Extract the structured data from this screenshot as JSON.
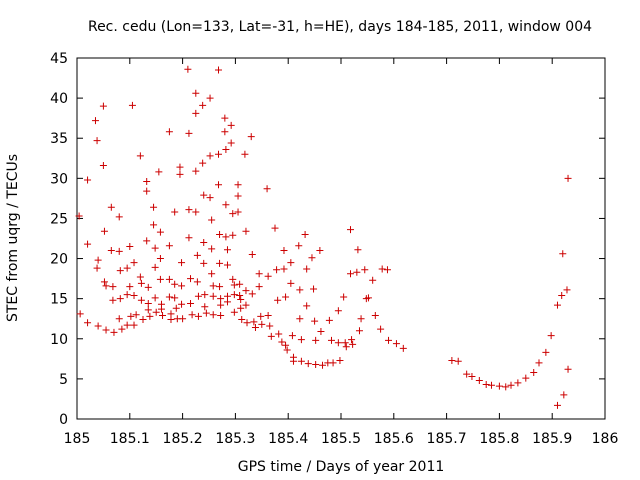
{
  "chart_data": {
    "type": "scatter",
    "title": "Rec. cedu (Lon=133, Lat=-31, h=HE), days 184-185, 2011, window 004",
    "xlabel": "GPS time / Days of year 2011",
    "ylabel": "STEC from uqrg / TECUs",
    "xlim": [
      185,
      186
    ],
    "ylim": [
      0,
      45
    ],
    "x_ticks": [
      185,
      185.1,
      185.2,
      185.3,
      185.4,
      185.5,
      185.6,
      185.7,
      185.8,
      185.9,
      186
    ],
    "x_tick_labels": [
      "185",
      "185.1",
      "185.2",
      "185.3",
      "185.4",
      "185.5",
      "185.6",
      "185.7",
      "185.8",
      "185.9",
      "186"
    ],
    "y_ticks": [
      0,
      5,
      10,
      15,
      20,
      25,
      30,
      35,
      40,
      45
    ],
    "y_tick_labels": [
      "0",
      "5",
      "10",
      "15",
      "20",
      "25",
      "30",
      "35",
      "40",
      "45"
    ],
    "grid": false,
    "marker": "+",
    "color": "#cc0000",
    "points": [
      [
        185.004,
        25.3
      ],
      [
        185.006,
        13.1
      ],
      [
        185.02,
        29.8
      ],
      [
        185.02,
        21.8
      ],
      [
        185.02,
        12
      ],
      [
        185.035,
        37.2
      ],
      [
        185.038,
        34.7
      ],
      [
        185.04,
        19.8
      ],
      [
        185.038,
        18.8
      ],
      [
        185.04,
        11.6
      ],
      [
        185.05,
        39
      ],
      [
        185.05,
        31.6
      ],
      [
        185.052,
        23.4
      ],
      [
        185.052,
        17.1
      ],
      [
        185.055,
        16.6
      ],
      [
        185.055,
        11.1
      ],
      [
        185.065,
        26.4
      ],
      [
        185.065,
        21
      ],
      [
        185.068,
        16.5
      ],
      [
        185.068,
        14.8
      ],
      [
        185.07,
        10.8
      ],
      [
        185.08,
        25.2
      ],
      [
        185.08,
        20.9
      ],
      [
        185.082,
        18.5
      ],
      [
        185.082,
        15
      ],
      [
        185.08,
        12.5
      ],
      [
        185.085,
        11.2
      ],
      [
        185.095,
        18.8
      ],
      [
        185.095,
        15.5
      ],
      [
        185.095,
        11.7
      ],
      [
        185.1,
        21.5
      ],
      [
        185.1,
        16.5
      ],
      [
        185.102,
        12.8
      ],
      [
        185.105,
        39.1
      ],
      [
        185.108,
        19.5
      ],
      [
        185.108,
        15.4
      ],
      [
        185.108,
        11.7
      ],
      [
        185.112,
        13
      ],
      [
        185.12,
        32.8
      ],
      [
        185.12,
        17.7
      ],
      [
        185.122,
        16.9
      ],
      [
        185.122,
        14.8
      ],
      [
        185.125,
        12.4
      ],
      [
        185.132,
        29.6
      ],
      [
        185.132,
        28.4
      ],
      [
        185.132,
        22.2
      ],
      [
        185.135,
        16.4
      ],
      [
        185.135,
        14.4
      ],
      [
        185.135,
        13.6
      ],
      [
        185.138,
        12.8
      ],
      [
        185.145,
        26.4
      ],
      [
        185.145,
        24.2
      ],
      [
        185.148,
        21.3
      ],
      [
        185.148,
        18.9
      ],
      [
        185.148,
        15.1
      ],
      [
        185.15,
        13.3
      ],
      [
        185.155,
        30.8
      ],
      [
        185.158,
        23.3
      ],
      [
        185.158,
        20
      ],
      [
        185.158,
        17.4
      ],
      [
        185.16,
        14.3
      ],
      [
        185.16,
        13.7
      ],
      [
        185.162,
        12.9
      ],
      [
        185.175,
        35.8
      ],
      [
        185.175,
        21.6
      ],
      [
        185.175,
        17.4
      ],
      [
        185.175,
        15.2
      ],
      [
        185.178,
        13.1
      ],
      [
        185.178,
        12.4
      ],
      [
        185.185,
        25.8
      ],
      [
        185.185,
        16.8
      ],
      [
        185.185,
        15.1
      ],
      [
        185.188,
        13.8
      ],
      [
        185.19,
        12.5
      ],
      [
        185.195,
        31.4
      ],
      [
        185.195,
        30.5
      ],
      [
        185.198,
        19.5
      ],
      [
        185.198,
        16.6
      ],
      [
        185.198,
        14.3
      ],
      [
        185.2,
        12.5
      ],
      [
        185.21,
        43.6
      ],
      [
        185.212,
        35.6
      ],
      [
        185.212,
        26.1
      ],
      [
        185.212,
        22.6
      ],
      [
        185.215,
        17.5
      ],
      [
        185.215,
        14.4
      ],
      [
        185.218,
        13
      ],
      [
        185.225,
        40.6
      ],
      [
        185.225,
        38.1
      ],
      [
        185.225,
        30.9
      ],
      [
        185.225,
        25.8
      ],
      [
        185.228,
        20.4
      ],
      [
        185.228,
        17.1
      ],
      [
        185.23,
        15.3
      ],
      [
        185.23,
        12.8
      ],
      [
        185.238,
        39.1
      ],
      [
        185.238,
        31.9
      ],
      [
        185.24,
        27.9
      ],
      [
        185.24,
        22
      ],
      [
        185.24,
        19.4
      ],
      [
        185.242,
        15.5
      ],
      [
        185.242,
        14
      ],
      [
        185.245,
        13.2
      ],
      [
        185.252,
        40
      ],
      [
        185.252,
        32.8
      ],
      [
        185.252,
        27.6
      ],
      [
        185.255,
        24.8
      ],
      [
        185.255,
        21.2
      ],
      [
        185.255,
        18.1
      ],
      [
        185.258,
        16.6
      ],
      [
        185.258,
        15.3
      ],
      [
        185.258,
        13
      ],
      [
        185.268,
        43.5
      ],
      [
        185.268,
        33
      ],
      [
        185.268,
        29.2
      ],
      [
        185.27,
        23
      ],
      [
        185.27,
        19.4
      ],
      [
        185.27,
        16.5
      ],
      [
        185.272,
        15
      ],
      [
        185.272,
        14.2
      ],
      [
        185.272,
        12.9
      ],
      [
        185.28,
        37.5
      ],
      [
        185.28,
        35.8
      ],
      [
        185.282,
        33.6
      ],
      [
        185.282,
        26.7
      ],
      [
        185.282,
        22.7
      ],
      [
        185.285,
        21.1
      ],
      [
        185.285,
        19.2
      ],
      [
        185.285,
        15.3
      ],
      [
        185.285,
        14.6
      ],
      [
        185.292,
        36.6
      ],
      [
        185.292,
        34.4
      ],
      [
        185.295,
        25.6
      ],
      [
        185.295,
        22.9
      ],
      [
        185.295,
        17.4
      ],
      [
        185.298,
        16.7
      ],
      [
        185.298,
        15.5
      ],
      [
        185.298,
        13.3
      ],
      [
        185.305,
        29.2
      ],
      [
        185.305,
        27.8
      ],
      [
        185.305,
        25.8
      ],
      [
        185.308,
        16.8
      ],
      [
        185.308,
        15.4
      ],
      [
        185.31,
        14.9
      ],
      [
        185.31,
        13.8
      ],
      [
        185.312,
        12.4
      ],
      [
        185.318,
        33
      ],
      [
        185.32,
        23.4
      ],
      [
        185.32,
        16
      ],
      [
        185.32,
        14.2
      ],
      [
        185.322,
        12
      ],
      [
        185.33,
        35.2
      ],
      [
        185.332,
        20.5
      ],
      [
        185.332,
        15.6
      ],
      [
        185.335,
        12.1
      ],
      [
        185.338,
        11.4
      ],
      [
        185.345,
        18.1
      ],
      [
        185.345,
        16.5
      ],
      [
        185.348,
        12.8
      ],
      [
        185.35,
        11.8
      ],
      [
        185.36,
        28.7
      ],
      [
        185.362,
        17.8
      ],
      [
        185.362,
        12.9
      ],
      [
        185.365,
        11.6
      ],
      [
        185.368,
        10.3
      ],
      [
        185.375,
        23.8
      ],
      [
        185.378,
        18.6
      ],
      [
        185.38,
        14.8
      ],
      [
        185.382,
        10.6
      ],
      [
        185.388,
        9.6
      ],
      [
        185.392,
        21
      ],
      [
        185.392,
        18.7
      ],
      [
        185.395,
        15.2
      ],
      [
        185.395,
        9.2
      ],
      [
        185.398,
        8.6
      ],
      [
        185.405,
        19.5
      ],
      [
        185.405,
        16.9
      ],
      [
        185.408,
        10.4
      ],
      [
        185.41,
        7.7
      ],
      [
        185.41,
        7.2
      ],
      [
        185.42,
        21.6
      ],
      [
        185.422,
        16.1
      ],
      [
        185.422,
        12.5
      ],
      [
        185.425,
        9.9
      ],
      [
        185.425,
        7.2
      ],
      [
        185.432,
        23
      ],
      [
        185.435,
        18.7
      ],
      [
        185.435,
        14.1
      ],
      [
        185.438,
        6.9
      ],
      [
        185.445,
        20.1
      ],
      [
        185.448,
        16.2
      ],
      [
        185.45,
        12.2
      ],
      [
        185.452,
        9.8
      ],
      [
        185.452,
        6.8
      ],
      [
        185.46,
        21
      ],
      [
        185.462,
        10.9
      ],
      [
        185.465,
        6.7
      ],
      [
        185.475,
        7
      ],
      [
        185.478,
        12.3
      ],
      [
        185.482,
        9.8
      ],
      [
        185.485,
        7
      ],
      [
        185.495,
        13.5
      ],
      [
        185.495,
        9.5
      ],
      [
        185.498,
        7.3
      ],
      [
        185.505,
        15.2
      ],
      [
        185.508,
        9.5
      ],
      [
        185.51,
        9
      ],
      [
        185.518,
        23.6
      ],
      [
        185.518,
        18.1
      ],
      [
        185.52,
        9.9
      ],
      [
        185.522,
        9.3
      ],
      [
        185.53,
        18.3
      ],
      [
        185.532,
        21.1
      ],
      [
        185.535,
        11
      ],
      [
        185.538,
        12.5
      ],
      [
        185.545,
        18.6
      ],
      [
        185.548,
        15
      ],
      [
        185.552,
        15.1
      ],
      [
        185.56,
        17.3
      ],
      [
        185.565,
        12.9
      ],
      [
        185.575,
        11.2
      ],
      [
        185.578,
        18.7
      ],
      [
        185.588,
        18.6
      ],
      [
        185.59,
        9.8
      ],
      [
        185.605,
        9.4
      ],
      [
        185.618,
        8.8
      ],
      [
        185.71,
        7.3
      ],
      [
        185.722,
        7.2
      ],
      [
        185.738,
        5.6
      ],
      [
        185.748,
        5.3
      ],
      [
        185.762,
        4.8
      ],
      [
        185.775,
        4.3
      ],
      [
        185.785,
        4.2
      ],
      [
        185.8,
        4.1
      ],
      [
        185.812,
        4
      ],
      [
        185.822,
        4.2
      ],
      [
        185.835,
        4.5
      ],
      [
        185.85,
        5.1
      ],
      [
        185.865,
        5.8
      ],
      [
        185.875,
        7
      ],
      [
        185.888,
        8.3
      ],
      [
        185.898,
        10.4
      ],
      [
        185.91,
        14.2
      ],
      [
        185.918,
        15.4
      ],
      [
        185.92,
        20.6
      ],
      [
        185.928,
        16.1
      ],
      [
        185.93,
        30
      ],
      [
        185.93,
        6.2
      ],
      [
        185.91,
        1.7
      ],
      [
        185.922,
        3
      ]
    ]
  }
}
